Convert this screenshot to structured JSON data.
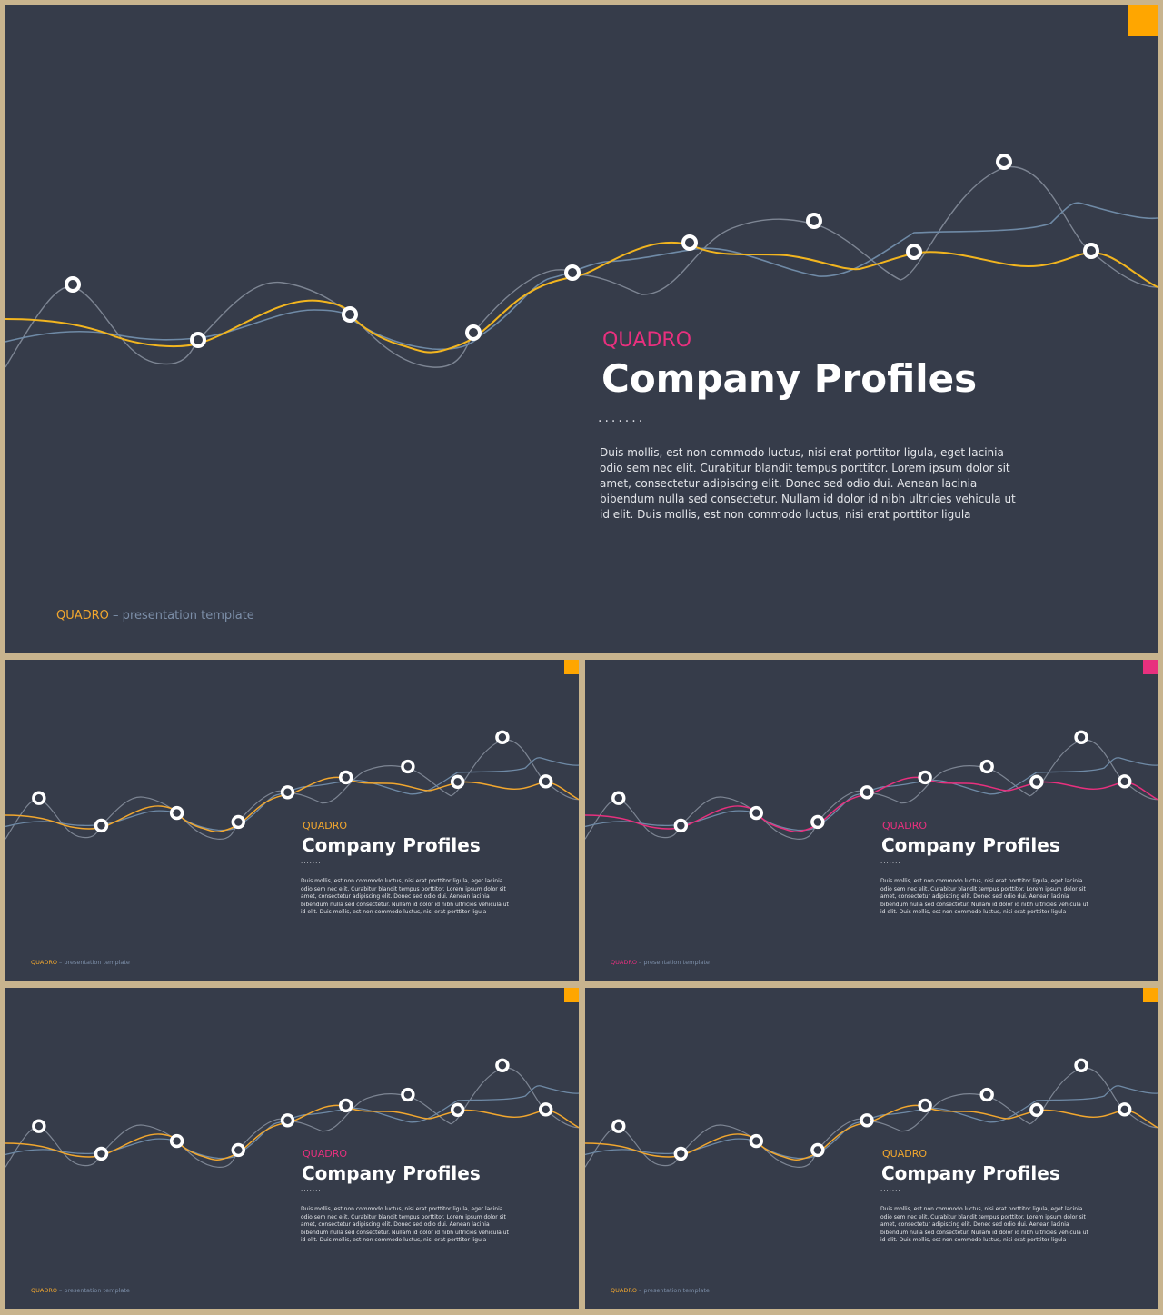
{
  "colors": {
    "background_frame": "#c8b48e",
    "slide_background": "#363c4a",
    "orange": "#ffa600",
    "pink": "#e8307e",
    "footer_blue": "#7c8ea8",
    "yellow_line": "#f2b51f",
    "grey_line": "#7d8593",
    "blue_line": "#6f8aa6"
  },
  "slides": [
    {
      "id": "main",
      "brand": "QUADRO",
      "title": "Company Profiles",
      "dots": ".......",
      "body": "Duis mollis, est non commodo luctus, nisi erat porttitor ligula, eget lacinia odio sem nec elit. Curabitur blandit tempus porttitor. Lorem ipsum dolor sit amet, consectetur adipiscing elit. Donec sed odio dui. Aenean lacinia bibendum nulla sed consectetur. Nullam id dolor id nibh ultricies vehicula ut id elit. Duis mollis, est non commodo luctus, nisi erat porttitor ligula",
      "footer_brand": "QUADRO",
      "footer_text": " – presentation template",
      "corner_color": "#ffa600",
      "brand_color": "#e8307e",
      "footer_brand_color": "#f2a72e",
      "accent_line_color": "#f2b51f"
    },
    {
      "id": "t1",
      "brand": "QUADRO",
      "title": "Company Profiles",
      "dots": ".......",
      "body": "Duis mollis, est non commodo luctus, nisi erat porttitor ligula, eget lacinia odio sem nec elit. Curabitur blandit tempus porttitor. Lorem ipsum dolor sit amet, consectetur adipiscing elit. Donec sed odio dui. Aenean lacinia bibendum nulla sed consectetur. Nullam id dolor id nibh ultricies vehicula ut id elit. Duis mollis, est non commodo luctus, nisi erat porttitor ligula",
      "footer_brand": "QUADRO",
      "footer_text": " – presentation template",
      "corner_color": "#ffa600",
      "brand_color": "#f2a72e",
      "footer_brand_color": "#f2a72e",
      "accent_line_color": "#f2a72e"
    },
    {
      "id": "t2",
      "brand": "QUADRO",
      "title": "Company Profiles",
      "dots": ".......",
      "body": "Duis mollis, est non commodo luctus, nisi erat porttitor ligula, eget lacinia odio sem nec elit. Curabitur blandit tempus porttitor. Lorem ipsum dolor sit amet, consectetur adipiscing elit. Donec sed odio dui. Aenean lacinia bibendum nulla sed consectetur. Nullam id dolor id nibh ultricies vehicula ut id elit. Duis mollis, est non commodo luctus, nisi erat porttitor ligula",
      "footer_brand": "QUADRO",
      "footer_text": " – presentation template",
      "corner_color": "#e8307e",
      "brand_color": "#e8307e",
      "footer_brand_color": "#e8307e",
      "accent_line_color": "#e8307e"
    },
    {
      "id": "t3",
      "brand": "QUADRO",
      "title": "Company Profiles",
      "dots": ".......",
      "body": "Duis mollis, est non commodo luctus, nisi erat porttitor ligula, eget lacinia odio sem nec elit. Curabitur blandit tempus porttitor. Lorem ipsum dolor sit amet, consectetur adipiscing elit. Donec sed odio dui. Aenean lacinia bibendum nulla sed consectetur. Nullam id dolor id nibh ultricies vehicula ut id elit. Duis mollis, est non commodo luctus, nisi erat porttitor ligula",
      "footer_brand": "QUADRO",
      "footer_text": " – presentation template",
      "corner_color": "#ffa600",
      "brand_color": "#e8307e",
      "footer_brand_color": "#f2a72e",
      "accent_line_color": "#f2a72e"
    },
    {
      "id": "t4",
      "brand": "QUADRO",
      "title": "Company Profiles",
      "dots": ".......",
      "body": "Duis mollis, est non commodo luctus, nisi erat porttitor ligula, eget lacinia odio sem nec elit. Curabitur blandit tempus porttitor. Lorem ipsum dolor sit amet, consectetur adipiscing elit. Donec sed odio dui. Aenean lacinia bibendum nulla sed consectetur. Nullam id dolor id nibh ultricies vehicula ut id elit. Duis mollis, est non commodo luctus, nisi erat porttitor ligula",
      "footer_brand": "QUADRO",
      "footer_text": " – presentation template",
      "corner_color": "#ffa600",
      "brand_color": "#f2a72e",
      "footer_brand_color": "#f2a72e",
      "accent_line_color": "#f2a72e"
    }
  ]
}
